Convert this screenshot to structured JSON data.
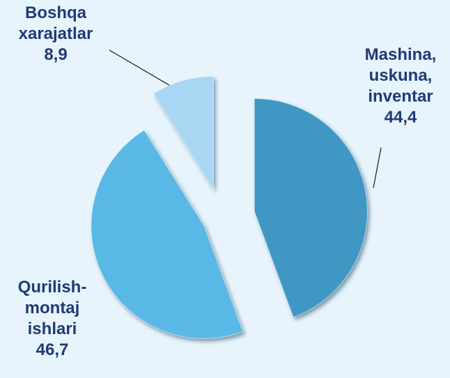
{
  "chart_data": {
    "type": "pie",
    "categories": [
      "Mashina, uskuna, inventar",
      "Qurilish-montaj ishlari",
      "Boshqa xarajatlar"
    ],
    "values": [
      44.4,
      46.7,
      8.9
    ],
    "value_labels": [
      "44,4",
      "46,7",
      "8,9"
    ],
    "colors": [
      "#3f97c4",
      "#5ab8e6",
      "#a9d7f3"
    ]
  }
}
